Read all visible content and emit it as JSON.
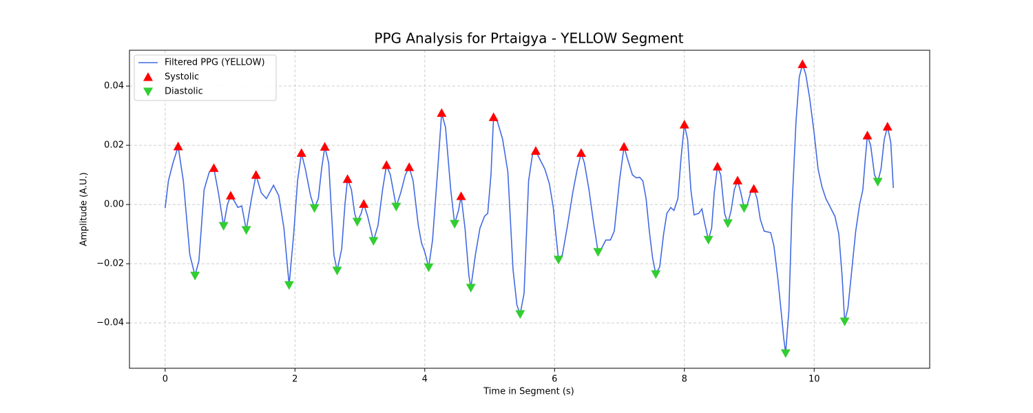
{
  "chart_data": {
    "type": "line",
    "title": "PPG Analysis for Prtaigya - YELLOW Segment",
    "xlabel": "Time in Segment (s)",
    "ylabel": "Amplitude (A.U.)",
    "xlim": [
      -0.55,
      11.78
    ],
    "ylim": [
      -0.0553,
      0.0521
    ],
    "xticks": [
      0,
      2,
      4,
      6,
      8,
      10
    ],
    "yticks": [
      {
        "value": -0.04,
        "label": "−0.04"
      },
      {
        "value": -0.02,
        "label": "−0.02"
      },
      {
        "value": 0,
        "label": "0.00"
      },
      0.02,
      0.04
    ],
    "grid": true,
    "legend": "upper left",
    "series": [
      {
        "name": "Filtered PPG (YELLOW)",
        "color": "#4169e1",
        "type": "line",
        "x": [
          0,
          0.05,
          0.12,
          0.2,
          0.28,
          0.38,
          0.46,
          0.52,
          0.6,
          0.68,
          0.75,
          0.82,
          0.9,
          0.96,
          1.01,
          1.07,
          1.12,
          1.18,
          1.25,
          1.33,
          1.4,
          1.48,
          1.56,
          1.67,
          1.75,
          1.83,
          1.91,
          1.98,
          2.04,
          2.1,
          2.16,
          2.24,
          2.3,
          2.36,
          2.41,
          2.46,
          2.52,
          2.6,
          2.65,
          2.72,
          2.77,
          2.81,
          2.87,
          2.92,
          2.96,
          3.02,
          3.06,
          3.12,
          3.21,
          3.28,
          3.35,
          3.41,
          3.47,
          3.56,
          3.63,
          3.7,
          3.76,
          3.82,
          3.9,
          3.95,
          4.0,
          4.06,
          4.12,
          4.2,
          4.26,
          4.32,
          4.4,
          4.46,
          4.52,
          4.56,
          4.62,
          4.68,
          4.71,
          4.78,
          4.85,
          4.92,
          4.97,
          5.02,
          5.06,
          5.12,
          5.2,
          5.28,
          5.36,
          5.42,
          5.47,
          5.53,
          5.6,
          5.66,
          5.71,
          5.78,
          5.85,
          5.92,
          5.98,
          6.02,
          6.06,
          6.12,
          6.2,
          6.28,
          6.35,
          6.41,
          6.46,
          6.53,
          6.6,
          6.67,
          6.72,
          6.79,
          6.86,
          6.92,
          7.0,
          7.07,
          7.13,
          7.2,
          7.26,
          7.31,
          7.36,
          7.41,
          7.46,
          7.51,
          7.56,
          7.62,
          7.68,
          7.73,
          7.79,
          7.84,
          7.9,
          7.95,
          8.0,
          8.05,
          8.1,
          8.15,
          8.22,
          8.27,
          8.32,
          8.37,
          8.42,
          8.46,
          8.51,
          8.56,
          8.62,
          8.67,
          8.72,
          8.77,
          8.82,
          8.87,
          8.92,
          8.97,
          9.02,
          9.07,
          9.12,
          9.17,
          9.23,
          9.33,
          9.38,
          9.44,
          9.5,
          9.53,
          9.56,
          9.61,
          9.66,
          9.72,
          9.77,
          9.82,
          9.87,
          9.93,
          10.0,
          10.06,
          10.12,
          10.18,
          10.25,
          10.32,
          10.38,
          10.43,
          10.47,
          10.52,
          10.58,
          10.64,
          10.7,
          10.75,
          10.79,
          10.82,
          10.87,
          10.93,
          10.98,
          11.03,
          11.08,
          11.13,
          11.18,
          11.22
        ],
        "values": [
          -0.0012,
          0.008,
          0.014,
          0.0196,
          0.008,
          -0.017,
          -0.024,
          -0.019,
          0.005,
          0.011,
          0.0123,
          0.004,
          -0.0072,
          0.0,
          0.003,
          0.001,
          -0.001,
          -0.0005,
          -0.0086,
          0.002,
          0.01,
          0.004,
          0.002,
          0.0065,
          0.003,
          -0.008,
          -0.0272,
          -0.01,
          0.008,
          0.0174,
          0.012,
          0.003,
          -0.0012,
          0.002,
          0.012,
          0.0195,
          0.014,
          -0.017,
          -0.0223,
          -0.015,
          0.0,
          0.0086,
          0.005,
          -0.003,
          -0.0058,
          -0.003,
          0.0002,
          -0.004,
          -0.0123,
          -0.007,
          0.005,
          0.0133,
          0.01,
          -0.0007,
          0.004,
          0.01,
          0.0126,
          0.008,
          -0.007,
          -0.013,
          -0.016,
          -0.0212,
          -0.012,
          0.012,
          0.0309,
          0.026,
          0.005,
          -0.0065,
          -0.002,
          0.0028,
          -0.008,
          -0.024,
          -0.0281,
          -0.017,
          -0.008,
          -0.004,
          -0.003,
          0.01,
          0.0295,
          0.028,
          0.022,
          0.011,
          -0.022,
          -0.034,
          -0.037,
          -0.03,
          0.008,
          0.017,
          0.0181,
          0.015,
          0.012,
          0.007,
          -0.001,
          -0.01,
          -0.0186,
          -0.017,
          -0.007,
          0.004,
          0.012,
          0.0174,
          0.014,
          0.005,
          -0.006,
          -0.016,
          -0.015,
          -0.012,
          -0.012,
          -0.009,
          0.008,
          0.0195,
          0.015,
          0.01,
          0.009,
          0.0092,
          0.008,
          0.002,
          -0.009,
          -0.018,
          -0.0235,
          -0.021,
          -0.01,
          -0.003,
          -0.001,
          -0.002,
          0.002,
          0.016,
          0.027,
          0.022,
          0.005,
          -0.0035,
          -0.003,
          -0.0015,
          -0.007,
          -0.0119,
          -0.008,
          0.004,
          0.0128,
          0.01,
          -0.003,
          -0.0063,
          -0.002,
          0.005,
          0.0081,
          0.004,
          -0.0012,
          0.0,
          0.004,
          0.0053,
          0.002,
          -0.005,
          -0.009,
          -0.0095,
          -0.014,
          -0.025,
          -0.038,
          -0.045,
          -0.0502,
          -0.036,
          0.0,
          0.028,
          0.043,
          0.0474,
          0.044,
          0.036,
          0.024,
          0.012,
          0.006,
          0.002,
          -0.001,
          -0.004,
          -0.01,
          -0.024,
          -0.0395,
          -0.035,
          -0.022,
          -0.009,
          0.0,
          0.005,
          0.016,
          0.0233,
          0.02,
          0.01,
          0.0077,
          0.012,
          0.022,
          0.0263,
          0.021,
          0.0056
        ]
      },
      {
        "name": "Systolic",
        "color": "#ff0000",
        "type": "scatter",
        "marker": "triangle-up",
        "x": [
          0.2,
          0.75,
          1.01,
          1.4,
          2.1,
          2.46,
          2.81,
          3.06,
          3.41,
          3.76,
          4.26,
          4.56,
          5.06,
          5.71,
          6.41,
          7.07,
          8.0,
          8.51,
          8.82,
          9.07,
          9.82,
          10.82,
          11.13
        ],
        "values": [
          0.0196,
          0.0123,
          0.003,
          0.01,
          0.0174,
          0.0195,
          0.0086,
          0.0002,
          0.0133,
          0.0126,
          0.0309,
          0.0028,
          0.0295,
          0.0181,
          0.0174,
          0.0195,
          0.027,
          0.0128,
          0.0081,
          0.0053,
          0.0474,
          0.0233,
          0.0263
        ]
      },
      {
        "name": "Diastolic",
        "color": "#32cd32",
        "type": "scatter",
        "marker": "triangle-down",
        "x": [
          0.46,
          0.9,
          1.25,
          1.91,
          2.3,
          2.65,
          2.96,
          3.21,
          3.56,
          4.06,
          4.46,
          4.71,
          5.47,
          6.06,
          6.67,
          7.56,
          8.37,
          8.67,
          8.92,
          9.56,
          10.47,
          10.98
        ],
        "values": [
          -0.024,
          -0.0072,
          -0.0086,
          -0.0272,
          -0.0012,
          -0.0223,
          -0.0058,
          -0.0123,
          -0.0007,
          -0.0212,
          -0.0065,
          -0.0281,
          -0.037,
          -0.0186,
          -0.016,
          -0.0235,
          -0.0119,
          -0.0063,
          -0.0012,
          -0.0502,
          -0.0395,
          0.0077
        ]
      }
    ]
  }
}
